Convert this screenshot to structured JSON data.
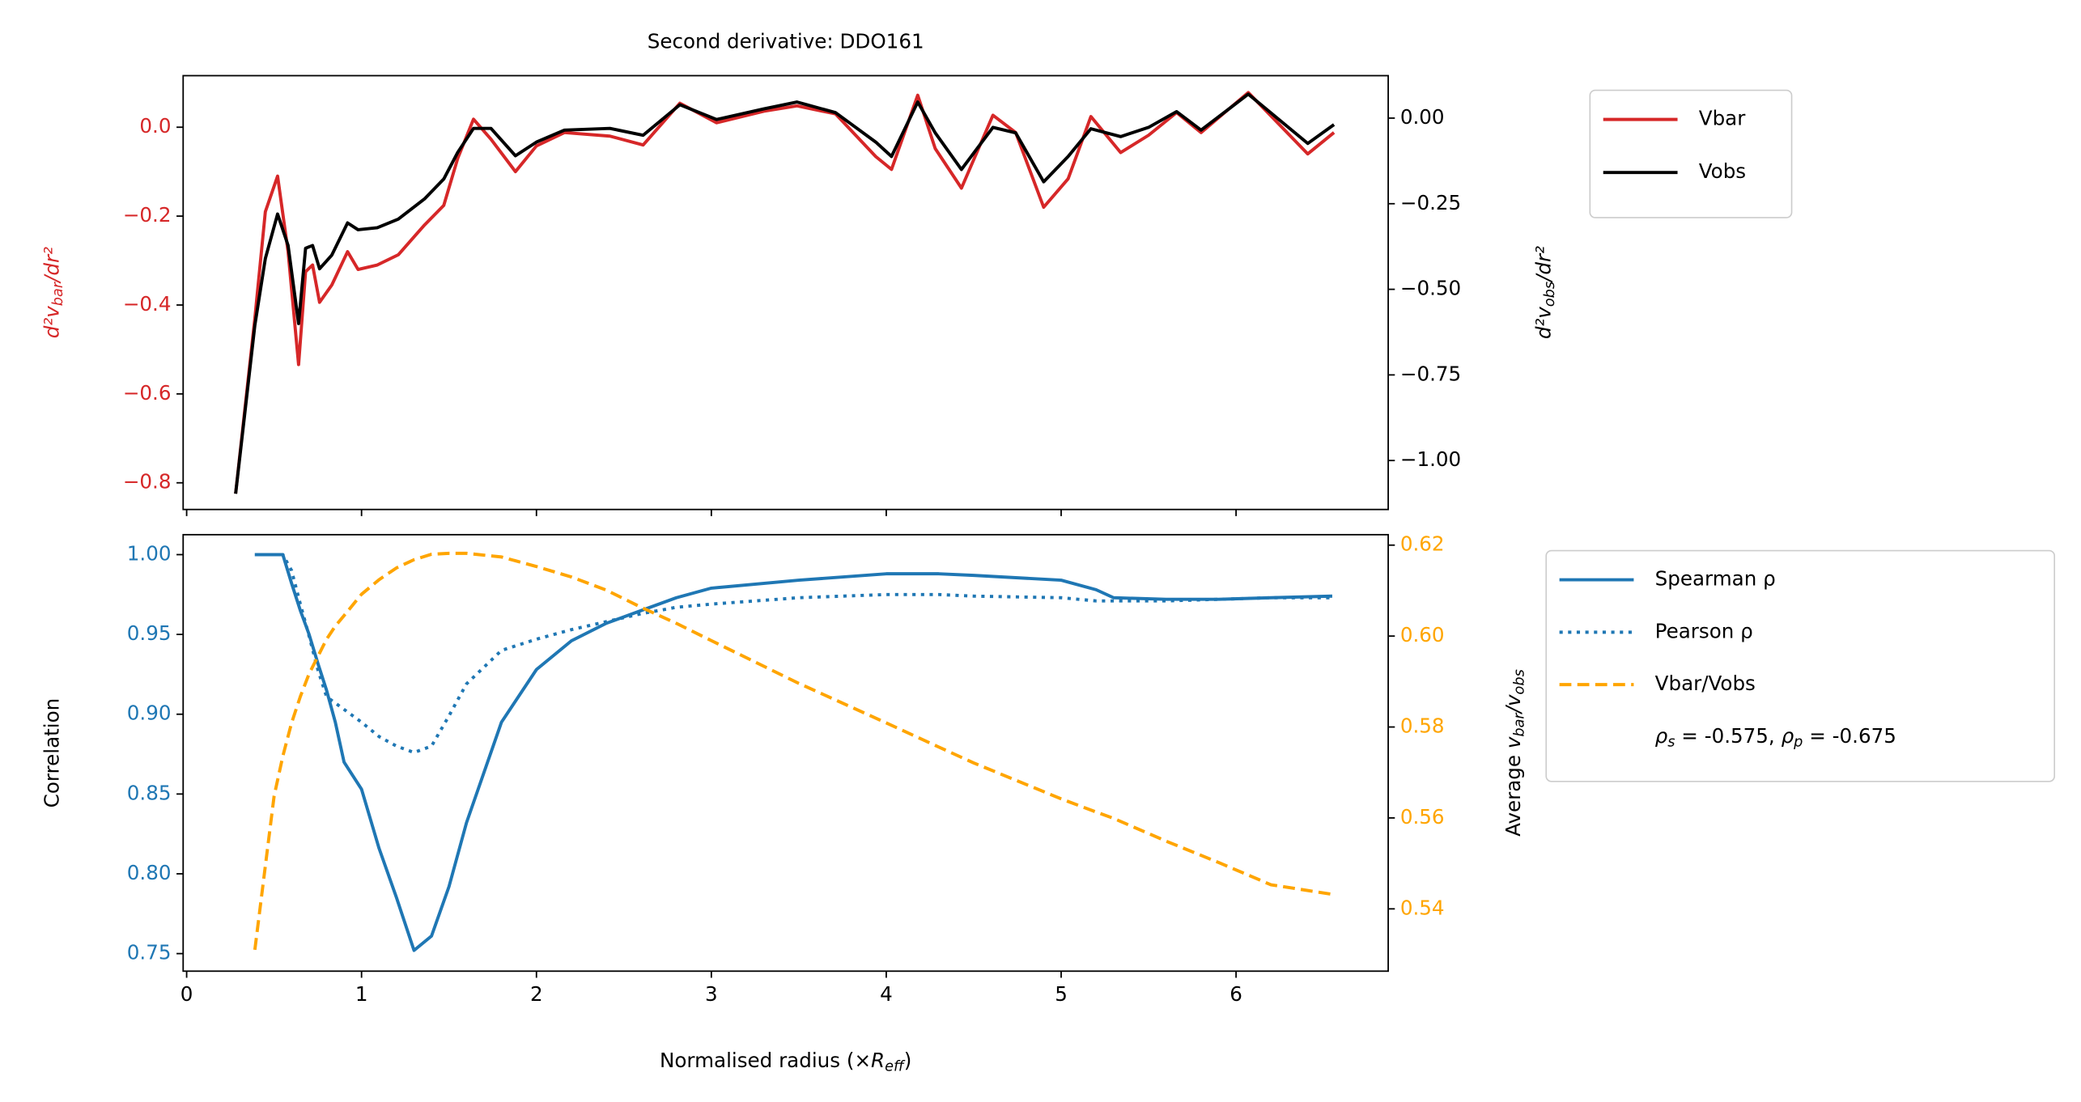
{
  "chart_data": [
    {
      "type": "line",
      "title": "Second derivative: DDO161",
      "ylabel": [
        {
          "text": "d²v",
          "italic": true
        },
        {
          "text": "bar",
          "sub": true,
          "italic": true
        },
        {
          "text": "/dr²",
          "italic": true
        }
      ],
      "y2label": [
        {
          "text": "d²v",
          "italic": true
        },
        {
          "text": "obs",
          "sub": true,
          "italic": true
        },
        {
          "text": "/dr²",
          "italic": true
        }
      ],
      "ylabel_color": "#d62728",
      "ytick_color": "#d62728",
      "y2label_color": "#000000",
      "y2tick_color": "#000000",
      "show_xticklabels": false,
      "legend_loc": "outside upper right",
      "xlim": [
        -0.02,
        6.87
      ],
      "xticks": [
        0,
        1,
        2,
        3,
        4,
        5,
        6
      ],
      "ylim": [
        -0.86,
        0.116
      ],
      "yticks": [
        {
          "value": -0.8,
          "label": "−0.8"
        },
        {
          "value": -0.6,
          "label": "−0.6"
        },
        {
          "value": -0.4,
          "label": "−0.4"
        },
        {
          "value": -0.2,
          "label": "−0.2"
        },
        {
          "value": 0,
          "label": "0.0"
        }
      ],
      "y2lim": [
        -1.143,
        0.124
      ],
      "y2ticks": [
        {
          "value": -1,
          "label": "−1.00"
        },
        {
          "value": -0.75,
          "label": "−0.75"
        },
        {
          "value": -0.5,
          "label": "−0.50"
        },
        {
          "value": -0.25,
          "label": "−0.25"
        },
        {
          "value": 0,
          "label": "0.00"
        }
      ],
      "x": [
        0.28,
        0.39,
        0.45,
        0.52,
        0.58,
        0.64,
        0.68,
        0.72,
        0.76,
        0.83,
        0.92,
        0.98,
        1.09,
        1.21,
        1.36,
        1.47,
        1.55,
        1.64,
        1.74,
        1.88,
        2.0,
        2.16,
        2.42,
        2.61,
        2.82,
        3.03,
        3.3,
        3.49,
        3.71,
        3.94,
        4.03,
        4.18,
        4.28,
        4.43,
        4.61,
        4.74,
        4.9,
        5.04,
        5.17,
        5.34,
        5.5,
        5.66,
        5.8,
        6.07,
        6.41,
        6.56
      ],
      "series": [
        {
          "name": "Vbar",
          "color": "#d62728",
          "linestyle": "solid",
          "axis": "y",
          "values": [
            -0.824,
            -0.43,
            -0.19,
            -0.11,
            -0.28,
            -0.534,
            -0.325,
            -0.31,
            -0.394,
            -0.355,
            -0.28,
            -0.32,
            -0.31,
            -0.287,
            -0.22,
            -0.176,
            -0.07,
            0.018,
            -0.027,
            -0.1,
            -0.042,
            -0.012,
            -0.02,
            -0.04,
            0.054,
            0.01,
            0.036,
            0.048,
            0.03,
            -0.066,
            -0.095,
            0.072,
            -0.048,
            -0.137,
            0.027,
            -0.012,
            -0.18,
            -0.116,
            0.024,
            -0.057,
            -0.018,
            0.033,
            -0.012,
            0.078,
            -0.06,
            -0.012
          ]
        },
        {
          "name": "Vobs",
          "color": "#000000",
          "linestyle": "solid",
          "axis": "y2",
          "values": [
            -1.097,
            -0.605,
            -0.41,
            -0.28,
            -0.372,
            -0.6,
            -0.38,
            -0.372,
            -0.44,
            -0.4,
            -0.306,
            -0.326,
            -0.32,
            -0.295,
            -0.236,
            -0.178,
            -0.1,
            -0.03,
            -0.03,
            -0.11,
            -0.07,
            -0.035,
            -0.03,
            -0.05,
            0.039,
            -0.004,
            0.027,
            0.047,
            0.016,
            -0.07,
            -0.112,
            0.047,
            -0.043,
            -0.15,
            -0.027,
            -0.043,
            -0.186,
            -0.112,
            -0.031,
            -0.054,
            -0.027,
            0.019,
            -0.035,
            0.07,
            -0.074,
            -0.019
          ]
        }
      ]
    },
    {
      "type": "line",
      "xlabel": [
        {
          "text": "Normalised radius (×"
        },
        {
          "text": "R",
          "italic": true
        },
        {
          "text": "eff",
          "sub": true,
          "italic": true
        },
        {
          "text": ")"
        }
      ],
      "ylabel": "Correlation",
      "y2label": [
        {
          "text": "Average "
        },
        {
          "text": "v",
          "italic": true
        },
        {
          "text": "bar",
          "sub": true,
          "italic": true
        },
        {
          "text": "/",
          "italic": true
        },
        {
          "text": "v",
          "italic": true
        },
        {
          "text": "obs",
          "sub": true,
          "italic": true
        }
      ],
      "ylabel_color": "#000000",
      "ytick_color": "#1f77b4",
      "y2label_color": "#000000",
      "y2tick_color": "#ffa500",
      "show_xticklabels": true,
      "legend_loc": "outside upper right",
      "legend_note": [
        {
          "text": "ρ",
          "italic": true
        },
        {
          "text": "s",
          "sub": true,
          "italic": true
        },
        {
          "text": " = -0.575, "
        },
        {
          "text": "ρ",
          "italic": true
        },
        {
          "text": "p",
          "sub": true,
          "italic": true
        },
        {
          "text": " = -0.675"
        }
      ],
      "xlim": [
        -0.02,
        6.87
      ],
      "xticks": [
        0,
        1,
        2,
        3,
        4,
        5,
        6
      ],
      "ylim": [
        0.739,
        1.0125
      ],
      "yticks": [
        0.75,
        {
          "value": 0.8,
          "label": "0.80"
        },
        0.85,
        {
          "value": 0.9,
          "label": "0.90"
        },
        0.95,
        {
          "value": 1,
          "label": "1.00"
        }
      ],
      "y2lim": [
        0.5263,
        0.6223
      ],
      "y2ticks": [
        0.54,
        0.56,
        0.58,
        {
          "value": 0.6,
          "label": "0.60"
        },
        {
          "value": 0.62,
          "label": "0.62"
        }
      ],
      "x": [
        0.39,
        0.5,
        0.55,
        0.6,
        0.65,
        0.7,
        0.75,
        0.8,
        0.85,
        0.9,
        1.0,
        1.1,
        1.2,
        1.3,
        1.4,
        1.5,
        1.6,
        1.8,
        2.0,
        2.2,
        2.4,
        2.6,
        2.8,
        3.0,
        3.5,
        4.0,
        4.3,
        4.5,
        5.0,
        5.2,
        5.3,
        5.6,
        5.9,
        6.2,
        6.55
      ],
      "series": [
        {
          "name": "Spearman ρ",
          "color": "#1f77b4",
          "linestyle": "solid",
          "axis": "y",
          "values": [
            1.0,
            1.0,
            1.0,
            0.982,
            0.965,
            0.95,
            0.932,
            0.915,
            0.895,
            0.87,
            0.853,
            0.816,
            0.785,
            0.752,
            0.761,
            0.792,
            0.832,
            0.895,
            0.928,
            0.946,
            0.957,
            0.965,
            0.973,
            0.979,
            0.984,
            0.988,
            0.988,
            0.987,
            0.984,
            0.978,
            0.973,
            0.972,
            0.972,
            0.973,
            0.974
          ]
        },
        {
          "name": "Pearson ρ",
          "color": "#1f77b4",
          "linestyle": "dotted",
          "axis": "y",
          "values": [
            1.0,
            1.0,
            1.0,
            0.99,
            0.969,
            0.949,
            0.928,
            0.911,
            0.907,
            0.903,
            0.895,
            0.886,
            0.88,
            0.876,
            0.88,
            0.899,
            0.919,
            0.94,
            0.947,
            0.953,
            0.958,
            0.963,
            0.967,
            0.969,
            0.973,
            0.975,
            0.975,
            0.974,
            0.973,
            0.971,
            0.971,
            0.971,
            0.972,
            0.973,
            0.973
          ]
        },
        {
          "name": "Vbar/Vobs",
          "color": "#ffa500",
          "linestyle": "dashed",
          "axis": "y2",
          "values": [
            0.531,
            0.5648,
            0.5736,
            0.5809,
            0.5867,
            0.5917,
            0.5955,
            0.5993,
            0.6022,
            0.6045,
            0.6092,
            0.6124,
            0.615,
            0.6168,
            0.618,
            0.6182,
            0.6182,
            0.6174,
            0.6153,
            0.613,
            0.6101,
            0.6063,
            0.6028,
            0.599,
            0.5896,
            0.5809,
            0.5756,
            0.5721,
            0.5642,
            0.5613,
            0.5599,
            0.5549,
            0.5502,
            0.5453,
            0.5432
          ]
        }
      ]
    }
  ]
}
